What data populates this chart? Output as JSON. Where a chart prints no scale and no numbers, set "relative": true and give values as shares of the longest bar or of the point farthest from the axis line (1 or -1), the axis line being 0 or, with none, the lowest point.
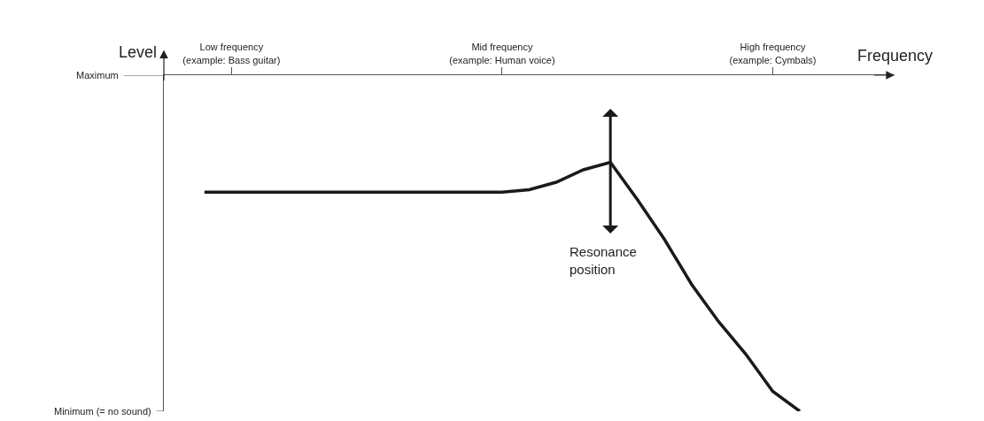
{
  "chart_data": {
    "type": "line",
    "relative": true,
    "xlabel": "Frequency",
    "ylabel": "Level",
    "categories": [
      null,
      null,
      "Low frequency\n(example: Bass guitar)",
      null,
      null,
      null,
      null,
      null,
      null,
      null,
      null,
      null,
      "Mid frequency\n(example: Human voice)",
      null,
      null,
      null,
      null,
      null,
      null,
      null,
      null,
      null,
      "High frequency\n(example: Cymbals)",
      null,
      null,
      null,
      null
    ],
    "series": [
      {
        "color": "#1a1a1a",
        "values": [
          null,
          0.88,
          0.88,
          0.88,
          0.88,
          0.88,
          0.88,
          0.88,
          0.88,
          0.88,
          0.88,
          0.88,
          0.88,
          0.89,
          0.92,
          0.97,
          1,
          0.85,
          0.69,
          0.51,
          0.36,
          0.23,
          0.08,
          0,
          null,
          null,
          null
        ]
      }
    ],
    "annotations": [
      "Resonance position",
      "Maximum",
      "Minimum (= no sound)"
    ],
    "marker": "none",
    "line_style": "solid"
  }
}
